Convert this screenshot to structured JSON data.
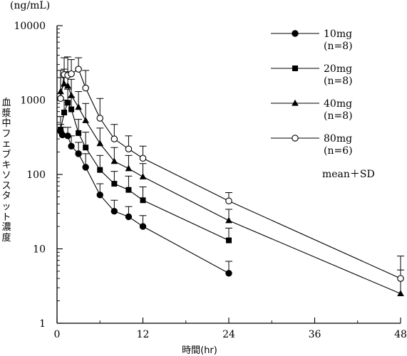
{
  "chart_data": {
    "type": "line",
    "unit_label": "(ng/mL)",
    "ylabel": "血漿中フェブキソスタット濃度",
    "xlabel": "時間(hr)",
    "yscale": "log",
    "ylim": [
      1,
      10000
    ],
    "xlim": [
      0,
      48
    ],
    "x_ticks": [
      "0",
      "12",
      "24",
      "36",
      "48"
    ],
    "y_ticks": [
      "1",
      "10",
      "100",
      "1000",
      "10000"
    ],
    "legend_position": "top-right",
    "annotation": "mean＋SD",
    "series": [
      {
        "name": "10mg",
        "sub": "(n=8)",
        "marker": "filled-circle",
        "x": [
          0.5,
          0.75,
          1.5,
          2,
          3,
          4,
          6,
          8,
          10,
          12,
          24
        ],
        "y": [
          380,
          340,
          330,
          240,
          190,
          125,
          53,
          32,
          27,
          20,
          4.7
        ],
        "sd_top": [
          470,
          430,
          430,
          330,
          270,
          190,
          75,
          45,
          37,
          28,
          6.8
        ]
      },
      {
        "name": "20mg",
        "sub": "(n=8)",
        "marker": "filled-square",
        "x": [
          0.5,
          1,
          1.5,
          2,
          3,
          4,
          6,
          8,
          10,
          12,
          24
        ],
        "y": [
          400,
          680,
          920,
          750,
          360,
          230,
          115,
          75,
          62,
          45,
          13
        ],
        "sd_top": [
          600,
          1000,
          1400,
          1100,
          550,
          370,
          180,
          110,
          95,
          68,
          19
        ]
      },
      {
        "name": "40mg",
        "sub": "(n=8)",
        "marker": "filled-triangle",
        "x": [
          0.5,
          1,
          1.5,
          2,
          3,
          4,
          6,
          8,
          10,
          12,
          24,
          48
        ],
        "y": [
          1300,
          1650,
          1550,
          1150,
          800,
          530,
          260,
          150,
          120,
          93,
          24,
          2.5
        ],
        "sd_top": [
          2000,
          2600,
          2400,
          1900,
          1300,
          900,
          420,
          230,
          180,
          140,
          34,
          5.2
        ]
      },
      {
        "name": "80mg",
        "sub": "(n=6)",
        "marker": "open-circle",
        "x": [
          0.5,
          1,
          1.5,
          2,
          3,
          4,
          6,
          8,
          10,
          12,
          24,
          48
        ],
        "y": [
          1050,
          2200,
          2150,
          2250,
          2600,
          1450,
          570,
          300,
          220,
          165,
          44,
          4
        ],
        "sd_top": [
          2500,
          3700,
          3800,
          3500,
          3700,
          2500,
          1050,
          470,
          330,
          240,
          57,
          8
        ]
      }
    ]
  }
}
